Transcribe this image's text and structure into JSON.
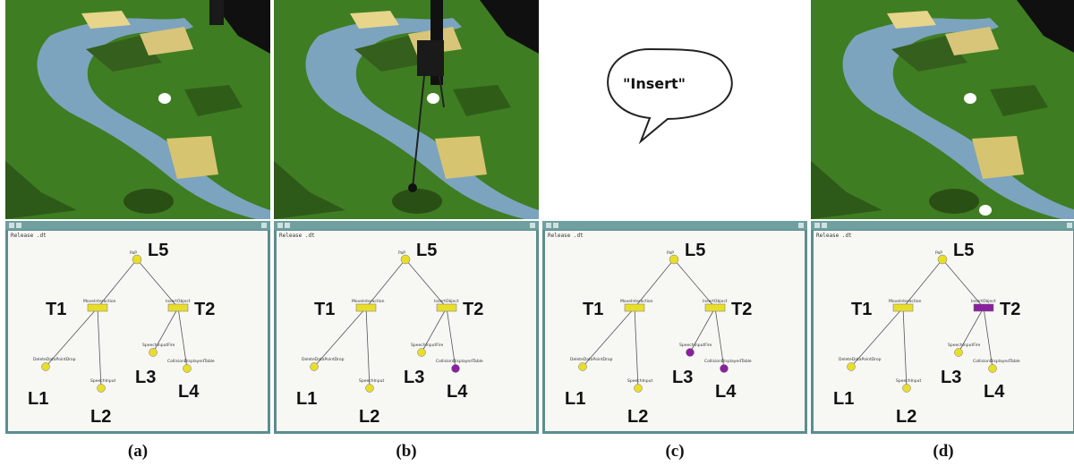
{
  "file_label": "Release .dt",
  "bubble_text": "\"Insert\"",
  "node_labels": {
    "root": "PaP",
    "t1": "MoveInteraction",
    "t2": "InsertObject",
    "l1": "DeleteDataPointDrop",
    "l2": "SpeechInput",
    "l3": "SpeechInputFire",
    "l4": "CollisionDisplayedTable"
  },
  "tree_tags": {
    "L5": "L5",
    "T1": "T1",
    "T2": "T2",
    "L1": "L1",
    "L2": "L2",
    "L3": "L3",
    "L4": "L4"
  },
  "colors": {
    "active": "#e8dd2a",
    "fired": "#8a1fa0",
    "panel_frame": "#5b8e8e",
    "water": "#7fa7c8",
    "terrain": "#3f7d22"
  },
  "panels": [
    {
      "caption": "(a)",
      "scene": "terrain-with-stylus",
      "t2_fired": false,
      "l3_fired": false,
      "l4_fired": false
    },
    {
      "caption": "(b)",
      "scene": "terrain-with-tracker",
      "t2_fired": false,
      "l3_fired": false,
      "l4_fired": true
    },
    {
      "caption": "(c)",
      "scene": "speech-bubble",
      "t2_fired": false,
      "l3_fired": true,
      "l4_fired": true
    },
    {
      "caption": "(d)",
      "scene": "terrain-object-inserted",
      "t2_fired": true,
      "l3_fired": false,
      "l4_fired": false
    }
  ]
}
